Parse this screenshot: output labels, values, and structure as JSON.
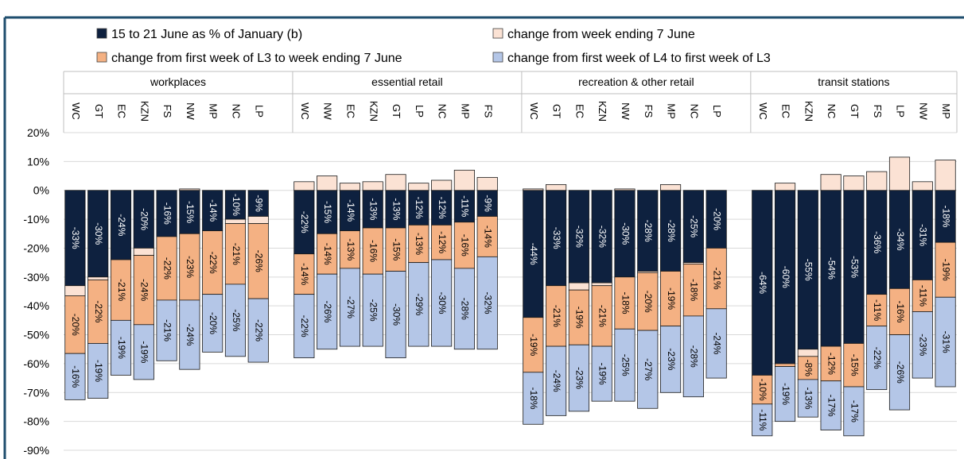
{
  "chart_data": {
    "type": "bar",
    "stacked": true,
    "groups": [
      {
        "label": "workplaces",
        "categories": [
          "WC",
          "GT",
          "EC",
          "KZN",
          "FS",
          "NW",
          "MP",
          "NC",
          "LP"
        ]
      },
      {
        "label": "essential retail",
        "categories": [
          "WC",
          "NW",
          "EC",
          "KZN",
          "GT",
          "LP",
          "NC",
          "MP",
          "FS"
        ]
      },
      {
        "label": "recreation & other retail",
        "categories": [
          "WC",
          "GT",
          "EC",
          "KZN",
          "NW",
          "FS",
          "MP",
          "NC",
          "LP"
        ]
      },
      {
        "label": "transit stations",
        "categories": [
          "WC",
          "EC",
          "KZN",
          "NC",
          "GT",
          "FS",
          "LP",
          "NW",
          "MP"
        ]
      }
    ],
    "series": [
      {
        "name": "15 to 21 June as % of January (b)",
        "color": "#0e213f",
        "label_color": "#ffffff",
        "values": [
          -33,
          -30,
          -24,
          -20,
          -16,
          -15,
          -14,
          -10,
          -9,
          -22,
          -15,
          -14,
          -13,
          -13,
          -12,
          -12,
          -11,
          -9,
          -44,
          -33,
          -32,
          -32,
          -30,
          -28,
          -28,
          -25,
          -20,
          -64,
          -60,
          -55,
          -54,
          -53,
          -36,
          -34,
          -31,
          -18
        ],
        "value_labels": [
          "-33%",
          "-30%",
          "-24%",
          "-20%",
          "-16%",
          "-15%",
          "-14%",
          "-10%",
          "-9%",
          "-22%",
          "-15%",
          "-14%",
          "-13%",
          "-13%",
          "-12%",
          "-12%",
          "-11%",
          "-9%",
          "-44%",
          "-33%",
          "-32%",
          "-32%",
          "-30%",
          "-28%",
          "-28%",
          "-25%",
          "-20%",
          "-64%",
          "-60%",
          "-55%",
          "-54%",
          "-53%",
          "-36%",
          "-34%",
          "-31%",
          "-18%"
        ]
      },
      {
        "name": "change from week ending 7 June",
        "color": "#fbe2d4",
        "label_color": "#000000",
        "values": [
          -3.5,
          -1,
          0,
          -2.5,
          0,
          0.5,
          0,
          -1.5,
          -2.5,
          3,
          5,
          2.5,
          3,
          5.5,
          2.5,
          3.5,
          7,
          4.5,
          0.5,
          2,
          -2.5,
          -1,
          0.5,
          -0.5,
          2,
          -0.5,
          0,
          0,
          2.5,
          -2.5,
          5.5,
          5,
          6.5,
          11.5,
          3,
          10.5
        ]
      },
      {
        "name": "change from first week of L3 to week ending 7 June",
        "color": "#f4b183",
        "label_color": "#000000",
        "values": [
          -20,
          -22,
          -21,
          -24,
          -22,
          -23,
          -22,
          -21,
          -26,
          -14,
          -14,
          -13,
          -16,
          -15,
          -13,
          -12,
          -16,
          -14,
          -19,
          -21,
          -19,
          -21,
          -18,
          -20,
          -19,
          -18,
          -21,
          -10,
          -1,
          -8,
          -12,
          -15,
          -11,
          -16,
          -11,
          -19
        ],
        "value_labels": [
          "-20%",
          "-22%",
          "-21%",
          "-24%",
          "-22%",
          "-23%",
          "-22%",
          "-21%",
          "-26%",
          "-14%",
          "-14%",
          "-13%",
          "-16%",
          "-15%",
          "-13%",
          "-12%",
          "-16%",
          "-14%",
          "-19%",
          "-21%",
          "-19%",
          "-21%",
          "-18%",
          "-20%",
          "-19%",
          "-18%",
          "-21%",
          "-10%",
          null,
          "-8%",
          "-12%",
          "-15%",
          "-11%",
          "-16%",
          "-11%",
          "-19%"
        ]
      },
      {
        "name": "change from first week of L4 to first week of L3",
        "color": "#b4c6e7",
        "label_color": "#000000",
        "values": [
          -16,
          -19,
          -19,
          -19,
          -21,
          -24,
          -20,
          -25,
          -22,
          -22,
          -26,
          -27,
          -25,
          -30,
          -29,
          -30,
          -28,
          -32,
          -18,
          -24,
          -23,
          -19,
          -25,
          -27,
          -23,
          -28,
          -24,
          -11,
          -19,
          -13,
          -17,
          -17,
          -22,
          -26,
          -23,
          -31
        ],
        "value_labels": [
          "-16%",
          "-19%",
          "-19%",
          "-19%",
          "-21%",
          "-24%",
          "-20%",
          "-25%",
          "-22%",
          "-22%",
          "-26%",
          "-27%",
          "-25%",
          "-30%",
          "-29%",
          "-30%",
          "-28%",
          "-32%",
          "-18%",
          "-24%",
          "-23%",
          "-19%",
          "-25%",
          "-27%",
          "-23%",
          "-28%",
          "-24%",
          "-11%",
          "-19%",
          "-13%",
          "-17%",
          "-17%",
          "-22%",
          "-26%",
          "-23%",
          "-31%"
        ]
      }
    ],
    "ylim": [
      -90,
      20
    ],
    "yticks": [
      {
        "value": 20,
        "label": "20%"
      },
      {
        "value": 10,
        "label": "10%"
      },
      {
        "value": 0,
        "label": "0%"
      },
      {
        "value": -10,
        "label": "-10%"
      },
      {
        "value": -20,
        "label": "-20%"
      },
      {
        "value": -30,
        "label": "-30%"
      },
      {
        "value": -40,
        "label": "-40%"
      },
      {
        "value": -50,
        "label": "-50%"
      },
      {
        "value": -60,
        "label": "-60%"
      },
      {
        "value": -70,
        "label": "-70%"
      },
      {
        "value": -80,
        "label": "-80%"
      },
      {
        "value": -90,
        "label": "-90%"
      }
    ],
    "grid": true
  }
}
